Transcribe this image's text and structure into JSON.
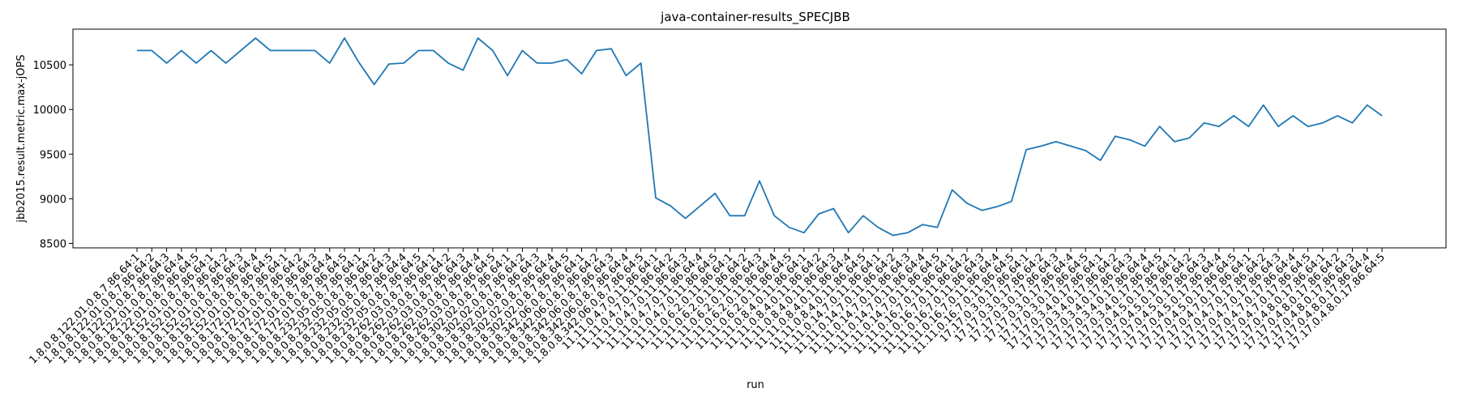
{
  "chart_data": {
    "type": "line",
    "title": "java-container-results_SPECJBB",
    "xlabel": "run",
    "ylabel": "jbb2015.result.metric.max-jOPS",
    "ylim": [
      8450,
      10900
    ],
    "yticks": [
      8500,
      9000,
      9500,
      10000,
      10500
    ],
    "grid": false,
    "line_color": "#1f77b4",
    "series": [
      {
        "x": [
          "1.8.0.8.122.01.0.8.7.86.64:1",
          "1.8.0.8.122.01.0.8.7.86.64:2",
          "1.8.0.8.122.01.0.8.7.86.64:3",
          "1.8.0.8.122.01.0.8.7.86.64:4",
          "1.8.0.8.122.01.0.8.7.86.64:5",
          "1.8.0.8.152.01.0.8.7.86.64:1",
          "1.8.0.8.152.01.0.8.7.86.64:2",
          "1.8.0.8.152.01.0.8.7.86.64:3",
          "1.8.0.8.152.01.0.8.7.86.64:4",
          "1.8.0.8.152.01.0.8.7.86.64:5",
          "1.8.0.8.172.01.0.8.7.86.64:1",
          "1.8.0.8.172.01.0.8.7.86.64:2",
          "1.8.0.8.172.01.0.8.7.86.64:3",
          "1.8.0.8.172.01.0.8.7.86.64:4",
          "1.8.0.8.172.01.0.8.7.86.64:5",
          "1.8.0.8.232.05.0.8.7.86.64:1",
          "1.8.0.8.232.05.0.8.7.86.64:2",
          "1.8.0.8.232.05.0.8.7.86.64:3",
          "1.8.0.8.232.05.0.8.7.86.64:4",
          "1.8.0.8.232.05.0.8.7.86.64:5",
          "1.8.0.8.262.03.0.8.7.86.64:1",
          "1.8.0.8.262.03.0.8.7.86.64:2",
          "1.8.0.8.262.03.0.8.7.86.64:3",
          "1.8.0.8.262.03.0.8.7.86.64:4",
          "1.8.0.8.262.03.0.8.7.86.64:5",
          "1.8.0.8.302.02.0.8.7.86.64:1",
          "1.8.0.8.302.02.0.8.7.86.64:2",
          "1.8.0.8.302.02.0.8.7.86.64:3",
          "1.8.0.8.302.02.0.8.7.86.64:4",
          "1.8.0.8.302.02.0.8.7.86.64:5",
          "1.8.0.8.342.06.0.8.7.86.64:1",
          "1.8.0.8.342.06.0.8.7.86.64:2",
          "1.8.0.8.342.06.0.8.7.86.64:3",
          "1.8.0.8.342.06.0.8.7.86.64:4",
          "1.8.0.8.342.06.0.8.7.86.64:5",
          "11.11.0.4.7.0.11.86.64:1",
          "11.11.0.4.7.0.11.86.64:2",
          "11.11.0.4.7.0.11.86.64:3",
          "11.11.0.4.7.0.11.86.64:4",
          "11.11.0.4.7.0.11.86.64:5",
          "11.11.0.6.2.0.11.86.64:1",
          "11.11.0.6.2.0.11.86.64:2",
          "11.11.0.6.2.0.11.86.64:3",
          "11.11.0.6.2.0.11.86.64:4",
          "11.11.0.6.2.0.11.86.64:5",
          "11.11.0.8.4.0.11.86.64:1",
          "11.11.0.8.4.0.11.86.64:2",
          "11.11.0.8.4.0.11.86.64:3",
          "11.11.0.8.4.0.11.86.64:4",
          "11.11.0.8.4.0.11.86.64:5",
          "11.11.0.14.7.0.11.86.64:1",
          "11.11.0.14.7.0.11.86.64:2",
          "11.11.0.14.7.0.11.86.64:3",
          "11.11.0.14.7.0.11.86.64:4",
          "11.11.0.14.7.0.11.86.64:5",
          "11.11.0.16.7.0.11.86.64:1",
          "11.11.0.16.7.0.11.86.64:2",
          "11.11.0.16.7.0.11.86.64:3",
          "11.11.0.16.7.0.11.86.64:4",
          "11.11.0.16.7.0.11.86.64:5",
          "17.17.0.3.0.17.86.64:1",
          "17.17.0.3.0.17.86.64:2",
          "17.17.0.3.0.17.86.64:3",
          "17.17.0.3.0.17.86.64:4",
          "17.17.0.3.0.17.86.64:5",
          "17.17.0.3.4.0.17.86.64:1",
          "17.17.0.3.4.0.17.86.64:2",
          "17.17.0.3.4.0.17.86.64:3",
          "17.17.0.3.4.0.17.86.64:4",
          "17.17.0.3.4.0.17.86.64:5",
          "17.17.0.4.5.0.17.86.64:1",
          "17.17.0.4.5.0.17.86.64:2",
          "17.17.0.4.5.0.17.86.64:3",
          "17.17.0.4.5.0.17.86.64:4",
          "17.17.0.4.5.0.17.86.64:5",
          "17.17.0.4.7.0.17.86.64:1",
          "17.17.0.4.7.0.17.86.64:2",
          "17.17.0.4.7.0.17.86.64:3",
          "17.17.0.4.7.0.17.86.64:4",
          "17.17.0.4.7.0.17.86.64:5",
          "17.17.0.4.8.0.17.86.64:1",
          "17.17.0.4.8.0.17.86.64:2",
          "17.17.0.4.8.0.17.86.64:3",
          "17.17.0.4.8.0.17.86.64:4",
          "17.17.0.4.8.0.17.86.64:5"
        ],
        "y": [
          10660,
          10660,
          10520,
          10660,
          10520,
          10660,
          10520,
          10660,
          10800,
          10660,
          10660,
          10660,
          10660,
          10520,
          10800,
          10520,
          10280,
          10510,
          10520,
          10660,
          10660,
          10520,
          10440,
          10800,
          10660,
          10380,
          10660,
          10520,
          10520,
          10560,
          10400,
          10660,
          10680,
          10380,
          10520,
          9010,
          8920,
          8780,
          8920,
          9060,
          8810,
          8810,
          9200,
          8810,
          8680,
          8620,
          8830,
          8890,
          8620,
          8810,
          8680,
          8590,
          8620,
          8710,
          8680,
          9100,
          8950,
          8870,
          8910,
          8970,
          9550,
          9590,
          9640,
          9590,
          9540,
          9430,
          9700,
          9660,
          9590,
          9810,
          9640,
          9680,
          9850,
          9810,
          9930,
          9810,
          10050,
          9810,
          9930,
          9810,
          9850,
          9930,
          9850,
          10050,
          9930
        ]
      }
    ]
  }
}
